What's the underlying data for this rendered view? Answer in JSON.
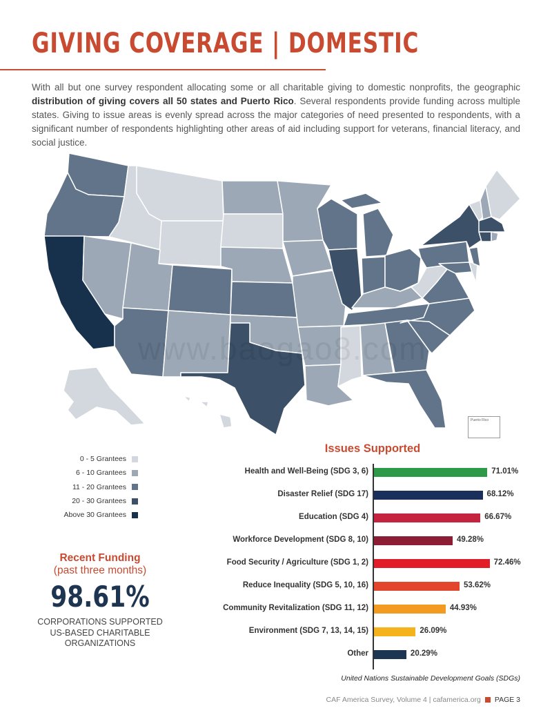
{
  "header": {
    "title": "GIVING COVERAGE | DOMESTIC"
  },
  "intro": {
    "text_before": "With all but one survey respondent allocating some or all charitable giving to domestic nonprofits, the geographic ",
    "text_bold": "distribution of giving covers all 50 states and Puerto Rico",
    "text_after": ". Several respondents provide funding across multiple states. Giving to issue areas is evenly spread across the major categories of need presented to respondents, with a significant number of respondents highlighting other areas of aid including support for veterans, financial literacy, and social justice."
  },
  "map": {
    "puerto_rico_label": "Puerto Rico",
    "watermark": "www.baogao8.com",
    "legend": [
      {
        "label": "0 - 5 Grantees",
        "color": "#d3d8de"
      },
      {
        "label": "6 - 10 Grantees",
        "color": "#9ca8b6"
      },
      {
        "label": "11 - 20 Grantees",
        "color": "#627489"
      },
      {
        "label": "20 - 30 Grantees",
        "color": "#3c5068"
      },
      {
        "label": "Above 30 Grantees",
        "color": "#17314c"
      }
    ]
  },
  "recent_funding": {
    "title": "Recent Funding",
    "subtitle": "(past three months)",
    "percent": "98.61%",
    "caption_lines": [
      "CORPORATIONS SUPPORTED",
      "US-BASED CHARITABLE",
      "ORGANIZATIONS"
    ]
  },
  "chart_data": {
    "type": "bar",
    "orientation": "horizontal",
    "title": "Issues Supported",
    "categories": [
      "Health and Well-Being (SDG 3, 6)",
      "Disaster Relief (SDG 17)",
      "Education (SDG 4)",
      "Workforce Development (SDG 8, 10)",
      "Food Security / Agriculture (SDG 1, 2)",
      "Reduce Inequality (SDG 5, 10, 16)",
      "Community Revitalization (SDG 11, 12)",
      "Environment (SDG 7, 13, 14, 15)",
      "Other"
    ],
    "values": [
      71.01,
      68.12,
      66.67,
      49.28,
      72.46,
      53.62,
      44.93,
      26.09,
      20.29
    ],
    "value_labels": [
      "71.01%",
      "68.12%",
      "66.67%",
      "49.28%",
      "72.46%",
      "53.62%",
      "44.93%",
      "26.09%",
      "20.29%"
    ],
    "colors": [
      "#2e9a47",
      "#1b2f5b",
      "#c4243e",
      "#8b1d35",
      "#e11d2a",
      "#e2452b",
      "#f39a22",
      "#f4b21c",
      "#1c3552"
    ],
    "xlim": [
      0,
      100
    ],
    "footnote": "United Nations Sustainable Development Goals (SDGs)"
  },
  "footer": {
    "text": "CAF America Survey, Volume 4 | cafamerica.org",
    "page": "PAGE 3"
  }
}
